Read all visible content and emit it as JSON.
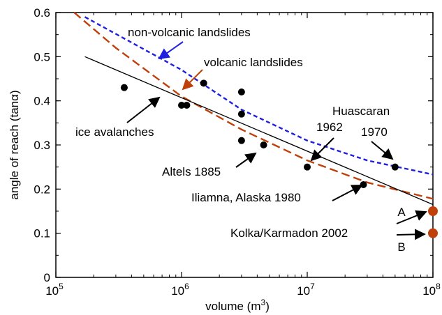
{
  "chart_data": {
    "type": "scatter",
    "xscale": "log",
    "xlim": [
      100000,
      100000000
    ],
    "ylim": [
      0,
      0.6
    ],
    "xlabel": "volume (m",
    "xlabel_sup": "3",
    "xlabel_close": ")",
    "ylabel": "angle of reach (tanα)",
    "grid": false,
    "x_ticks": [
      {
        "value": 100000,
        "base": "10",
        "exp": "5"
      },
      {
        "value": 1000000,
        "base": "10",
        "exp": "6"
      },
      {
        "value": 10000000,
        "base": "10",
        "exp": "7"
      },
      {
        "value": 100000000,
        "base": "10",
        "exp": "8"
      }
    ],
    "y_ticks": [
      {
        "value": 0,
        "label": "0"
      },
      {
        "value": 0.1,
        "label": "0.1"
      },
      {
        "value": 0.2,
        "label": "0.2"
      },
      {
        "value": 0.3,
        "label": "0.3"
      },
      {
        "value": 0.4,
        "label": "0.4"
      },
      {
        "value": 0.5,
        "label": "0.5"
      },
      {
        "value": 0.6,
        "label": "0.6"
      }
    ],
    "series": [
      {
        "kind": "line",
        "label": "non-volcanic landslides",
        "color": "#1f1fe0",
        "dash": "dotted",
        "points": [
          [
            170000,
            0.59
          ],
          [
            1000000,
            0.47
          ],
          [
            3000000,
            0.38
          ],
          [
            10000000,
            0.31
          ],
          [
            30000000,
            0.265
          ],
          [
            100000000,
            0.233
          ]
        ]
      },
      {
        "kind": "line",
        "label": "volcanic landslides",
        "color": "#c0400a",
        "dash": "dashed",
        "points": [
          [
            140000,
            0.6
          ],
          [
            300000,
            0.52
          ],
          [
            1000000,
            0.41
          ],
          [
            3000000,
            0.335
          ],
          [
            10000000,
            0.265
          ],
          [
            30000000,
            0.215
          ],
          [
            100000000,
            0.178
          ]
        ]
      },
      {
        "kind": "line",
        "label": "ice avalanches",
        "color": "#000000",
        "dash": "solid",
        "points": [
          [
            170000,
            0.5
          ],
          [
            100000000,
            0.165
          ]
        ]
      },
      {
        "kind": "scatter",
        "label": "",
        "color": "#000000",
        "points": [
          [
            350000,
            0.43
          ],
          [
            1000000,
            0.39
          ],
          [
            1100000,
            0.39
          ],
          [
            1500000,
            0.44
          ],
          [
            3000000,
            0.42
          ],
          [
            3000000,
            0.37
          ],
          [
            3000000,
            0.31
          ],
          [
            4500000,
            0.3
          ],
          [
            10000000,
            0.25
          ],
          [
            28000000,
            0.21
          ],
          [
            50000000,
            0.25
          ]
        ]
      },
      {
        "kind": "scatter",
        "label": "Kolka/Karmadon 2002",
        "color": "#c0400a",
        "points": [
          [
            100000000,
            0.15
          ],
          [
            100000000,
            0.1
          ]
        ]
      }
    ],
    "annotations": [
      {
        "id": "non-volcanic",
        "text": "non-volcanic landslides",
        "color": "#1f1fe0"
      },
      {
        "id": "volcanic",
        "text": "volcanic landslides",
        "color": "#c0400a"
      },
      {
        "id": "ice",
        "text": "ice avalanches",
        "color": "#000000"
      },
      {
        "id": "huascaran",
        "text": "Huascaran",
        "color": "#000000"
      },
      {
        "id": "y1962",
        "text": "1962",
        "color": "#000000"
      },
      {
        "id": "y1970",
        "text": "1970",
        "color": "#000000"
      },
      {
        "id": "altels",
        "text": "Altels 1885",
        "color": "#000000"
      },
      {
        "id": "iliamna",
        "text": "Iliamna, Alaska 1980",
        "color": "#000000"
      },
      {
        "id": "kolka",
        "text": "Kolka/Karmadon 2002",
        "color": "#000000"
      },
      {
        "id": "labelA",
        "text": "A",
        "color": "#000000"
      },
      {
        "id": "labelB",
        "text": "B",
        "color": "#000000"
      }
    ]
  }
}
